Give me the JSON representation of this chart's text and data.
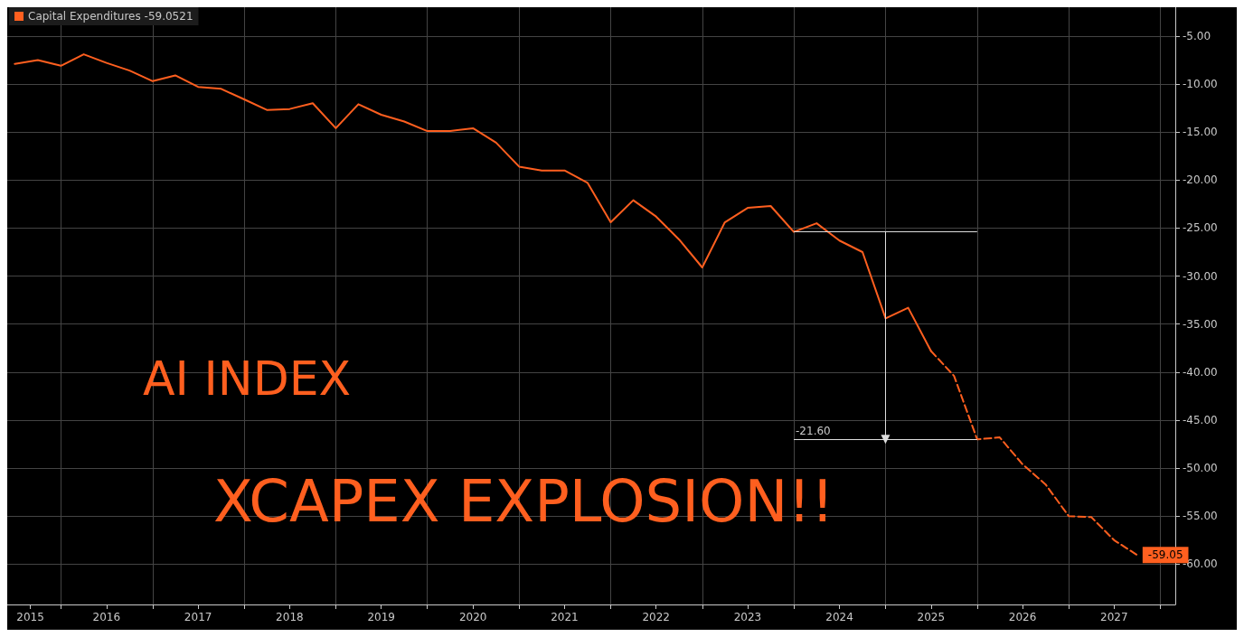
{
  "chart_data": {
    "type": "line",
    "series": [
      {
        "name": "Capital Expenditures -59.0521",
        "color": "#ff5f1f",
        "line_style": "solid",
        "x": [
          "2015-07",
          "2015-10",
          "2016-01",
          "2016-04",
          "2016-07",
          "2016-10",
          "2017-01",
          "2017-04",
          "2017-07",
          "2017-10",
          "2018-01",
          "2018-04",
          "2018-07",
          "2018-10",
          "2019-01",
          "2019-04",
          "2019-07",
          "2019-10",
          "2020-01",
          "2020-04",
          "2020-07",
          "2020-10",
          "2021-01",
          "2021-04",
          "2021-07",
          "2021-10",
          "2022-01",
          "2022-04",
          "2022-07",
          "2022-10",
          "2023-01",
          "2023-04",
          "2023-07",
          "2023-10",
          "2024-01",
          "2024-04",
          "2024-07",
          "2024-10",
          "2025-01",
          "2025-04",
          "2025-07"
        ],
        "values": [
          -7.9,
          -7.5,
          -8.1,
          -6.9,
          -7.8,
          -8.6,
          -9.7,
          -9.1,
          -10.3,
          -10.5,
          -11.6,
          -12.7,
          -12.6,
          -12.0,
          -14.6,
          -12.1,
          -13.2,
          -13.9,
          -14.9,
          -14.9,
          -14.6,
          -16.1,
          -18.6,
          -19.0,
          -19.0,
          -20.3,
          -24.4,
          -22.1,
          -23.8,
          -26.2,
          -29.1,
          -24.4,
          -22.9,
          -22.7,
          -25.4,
          -24.5,
          -26.3,
          -27.5,
          -34.4,
          -33.3,
          -37.8
        ]
      },
      {
        "color": "#ff5f1f",
        "line_style": "dashed",
        "x": [
          "2025-07",
          "2025-10",
          "2026-01",
          "2026-04",
          "2026-07",
          "2026-10",
          "2027-01",
          "2027-04",
          "2027-07",
          "2027-10"
        ],
        "values": [
          -37.8,
          -40.4,
          -47.0,
          -46.8,
          -49.6,
          -51.7,
          -55.0,
          -55.1,
          -57.5,
          -59.05
        ],
        "value_labels": [
          null,
          null,
          null,
          null,
          null,
          null,
          null,
          null,
          null,
          "-59.05"
        ]
      }
    ],
    "xlim": [
      "2015-06",
      "2028-03"
    ],
    "xticks": [
      {
        "value": "2015-09",
        "label": "2015"
      },
      {
        "value": "2016-01",
        "label": null
      },
      {
        "value": "2016-07",
        "label": "2016"
      },
      {
        "value": "2017-01",
        "label": null
      },
      {
        "value": "2017-07",
        "label": "2017"
      },
      {
        "value": "2018-01",
        "label": null
      },
      {
        "value": "2018-07",
        "label": "2018"
      },
      {
        "value": "2019-01",
        "label": null
      },
      {
        "value": "2019-07",
        "label": "2019"
      },
      {
        "value": "2020-01",
        "label": null
      },
      {
        "value": "2020-07",
        "label": "2020"
      },
      {
        "value": "2021-01",
        "label": null
      },
      {
        "value": "2021-07",
        "label": "2021"
      },
      {
        "value": "2022-01",
        "label": null
      },
      {
        "value": "2022-07",
        "label": "2022"
      },
      {
        "value": "2023-01",
        "label": null
      },
      {
        "value": "2023-07",
        "label": "2023"
      },
      {
        "value": "2024-01",
        "label": null
      },
      {
        "value": "2024-07",
        "label": "2024"
      },
      {
        "value": "2025-01",
        "label": null
      },
      {
        "value": "2025-07",
        "label": "2025"
      },
      {
        "value": "2026-01",
        "label": null
      },
      {
        "value": "2026-07",
        "label": "2026"
      },
      {
        "value": "2027-01",
        "label": null
      },
      {
        "value": "2027-07",
        "label": "2027"
      },
      {
        "value": "2028-01",
        "label": null
      }
    ],
    "ylim": [
      -64.2,
      -2
    ],
    "yticks": [
      {
        "value": -5,
        "label": "-5.00"
      },
      {
        "value": -10,
        "label": "-10.00"
      },
      {
        "value": -15,
        "label": "-15.00"
      },
      {
        "value": -20,
        "label": "-20.00"
      },
      {
        "value": -25,
        "label": "-25.00"
      },
      {
        "value": -30,
        "label": "-30.00"
      },
      {
        "value": -35,
        "label": "-35.00"
      },
      {
        "value": -40,
        "label": "-40.00"
      },
      {
        "value": -45,
        "label": "-45.00"
      },
      {
        "value": -50,
        "label": "-50.00"
      },
      {
        "value": -55,
        "label": "-55.00"
      },
      {
        "value": -60,
        "label": "-60.00"
      }
    ],
    "grid": true,
    "legend": "top left",
    "ref_lines": [
      {
        "axis": "y",
        "value": -25.4,
        "color": "#dddddd"
      },
      {
        "axis": "y",
        "value": -47.0,
        "color": "#dddddd"
      }
    ],
    "annotations": [
      "AI INDEX",
      "XCAPEX EXPLOSION!!",
      {
        "text": "-21.60",
        "x": "2024-01",
        "y": -47.0
      }
    ]
  }
}
